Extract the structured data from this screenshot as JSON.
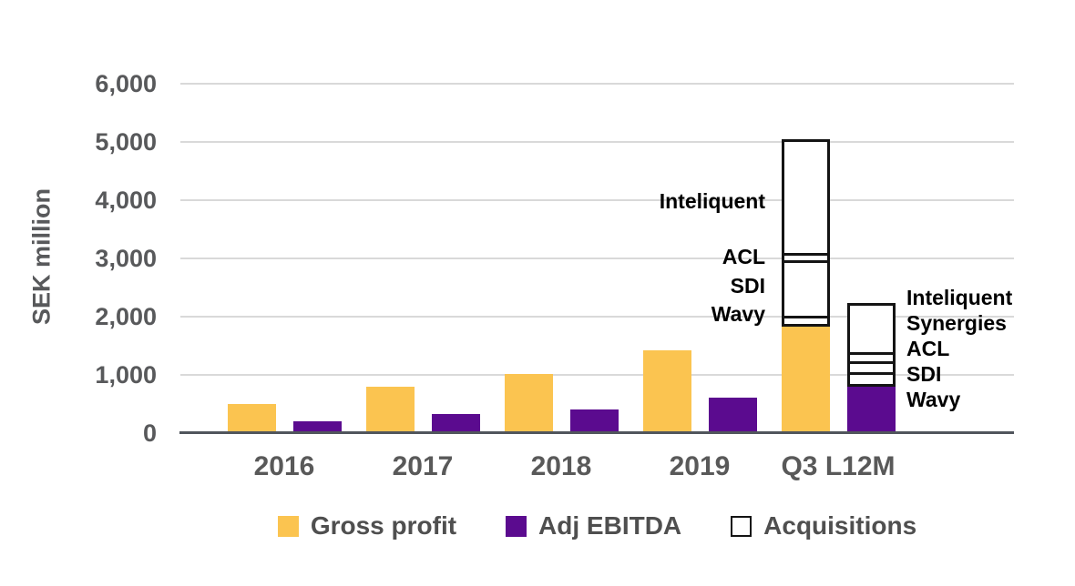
{
  "chart_data": {
    "type": "bar",
    "title": "",
    "ylabel": "SEK million",
    "ylim": [
      0,
      6000
    ],
    "grid": true,
    "legend_position": "bottom",
    "yticks": [
      0,
      1000,
      2000,
      3000,
      4000,
      5000,
      6000
    ],
    "ytick_labels": [
      "0",
      "1,000",
      "2,000",
      "3,000",
      "4,000",
      "5,000",
      "6,000"
    ],
    "categories": [
      "2016",
      "2017",
      "2018",
      "2019",
      "Q3 L12M"
    ],
    "series": [
      {
        "name": "Gross profit",
        "color": "#FBC450",
        "values": [
          500,
          790,
          1020,
          1420,
          1830
        ]
      },
      {
        "name": "Adj EBITDA",
        "color": "#5B0B8F",
        "values": [
          210,
          330,
          400,
          610,
          800
        ]
      }
    ],
    "acquisition_stacks": [
      {
        "category": "Q3 L12M",
        "on_series": "Gross profit",
        "label_side": "left",
        "segments": [
          {
            "label": "Wavy",
            "value": 190
          },
          {
            "label": "SDI",
            "value": 950
          },
          {
            "label": "ACL",
            "value": 130
          },
          {
            "label": "Inteliquent",
            "value": 1950
          }
        ]
      },
      {
        "category": "Q3 L12M",
        "on_series": "Adj EBITDA",
        "label_side": "right",
        "segments": [
          {
            "label": "Wavy",
            "value": 40
          },
          {
            "label": "SDI",
            "value": 210
          },
          {
            "label": "ACL",
            "value": 180
          },
          {
            "label": "Synergies",
            "value": 160
          },
          {
            "label": "Inteliquent",
            "value": 840
          }
        ]
      }
    ],
    "legend": [
      {
        "label": "Gross profit",
        "color": "#FBC450",
        "border": false
      },
      {
        "label": "Adj EBITDA",
        "color": "#5B0B8F",
        "border": false
      },
      {
        "label": "Acquisitions",
        "color": "#FFFFFF",
        "border": true
      }
    ]
  },
  "colors": {
    "gross_profit": "#FBC450",
    "adj_ebitda": "#5B0B8F",
    "acquisition_fill": "#FFFFFF",
    "acquisition_border": "#141414",
    "axis_text": "#58595b",
    "gridline": "#d9d9d9",
    "axis_line": "#51565c"
  }
}
